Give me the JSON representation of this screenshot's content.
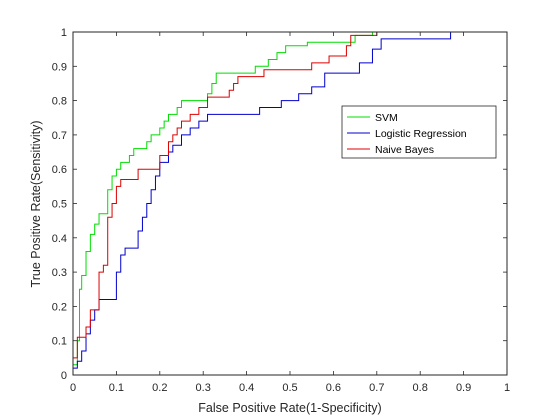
{
  "chart_data": {
    "type": "line",
    "title": "",
    "xlabel": "False Positive Rate(1-Specificity)",
    "ylabel": "True Positive Rate(Sensitivity)",
    "xlim": [
      0,
      1
    ],
    "ylim": [
      0,
      1
    ],
    "xticks": [
      "0",
      "0.1",
      "0.2",
      "0.3",
      "0.4",
      "0.5",
      "0.6",
      "0.7",
      "0.8",
      "0.9",
      "1"
    ],
    "yticks": [
      "0",
      "0.1",
      "0.2",
      "0.3",
      "0.4",
      "0.5",
      "0.6",
      "0.7",
      "0.8",
      "0.9",
      "1"
    ],
    "grid": false,
    "legend_position": "right",
    "series": [
      {
        "name": "SVM",
        "color": "#00dd00",
        "points": [
          [
            0,
            0
          ],
          [
            0,
            0.03
          ],
          [
            0.01,
            0.03
          ],
          [
            0.01,
            0.1
          ],
          [
            0.015,
            0.1
          ],
          [
            0.015,
            0.25
          ],
          [
            0.02,
            0.25
          ],
          [
            0.02,
            0.29
          ],
          [
            0.03,
            0.29
          ],
          [
            0.03,
            0.36
          ],
          [
            0.04,
            0.36
          ],
          [
            0.04,
            0.41
          ],
          [
            0.05,
            0.41
          ],
          [
            0.05,
            0.44
          ],
          [
            0.06,
            0.44
          ],
          [
            0.06,
            0.47
          ],
          [
            0.08,
            0.47
          ],
          [
            0.08,
            0.54
          ],
          [
            0.09,
            0.54
          ],
          [
            0.09,
            0.58
          ],
          [
            0.1,
            0.58
          ],
          [
            0.1,
            0.6
          ],
          [
            0.11,
            0.6
          ],
          [
            0.11,
            0.62
          ],
          [
            0.13,
            0.62
          ],
          [
            0.13,
            0.64
          ],
          [
            0.14,
            0.64
          ],
          [
            0.14,
            0.66
          ],
          [
            0.17,
            0.66
          ],
          [
            0.17,
            0.68
          ],
          [
            0.18,
            0.68
          ],
          [
            0.18,
            0.7
          ],
          [
            0.2,
            0.7
          ],
          [
            0.2,
            0.72
          ],
          [
            0.21,
            0.72
          ],
          [
            0.21,
            0.74
          ],
          [
            0.22,
            0.74
          ],
          [
            0.22,
            0.76
          ],
          [
            0.24,
            0.76
          ],
          [
            0.24,
            0.78
          ],
          [
            0.25,
            0.78
          ],
          [
            0.25,
            0.8
          ],
          [
            0.31,
            0.8
          ],
          [
            0.31,
            0.82
          ],
          [
            0.32,
            0.82
          ],
          [
            0.32,
            0.85
          ],
          [
            0.33,
            0.85
          ],
          [
            0.33,
            0.88
          ],
          [
            0.42,
            0.88
          ],
          [
            0.42,
            0.9
          ],
          [
            0.45,
            0.9
          ],
          [
            0.45,
            0.92
          ],
          [
            0.47,
            0.92
          ],
          [
            0.47,
            0.94
          ],
          [
            0.49,
            0.94
          ],
          [
            0.49,
            0.96
          ],
          [
            0.54,
            0.96
          ],
          [
            0.54,
            0.97
          ],
          [
            0.65,
            0.97
          ],
          [
            0.65,
            0.99
          ],
          [
            0.69,
            0.99
          ],
          [
            0.69,
            1.0
          ],
          [
            1.0,
            1.0
          ]
        ]
      },
      {
        "name": "Logistic Regression",
        "color": "#0000cc",
        "points": [
          [
            0,
            0
          ],
          [
            0,
            0.02
          ],
          [
            0.01,
            0.02
          ],
          [
            0.01,
            0.04
          ],
          [
            0.02,
            0.04
          ],
          [
            0.02,
            0.07
          ],
          [
            0.03,
            0.07
          ],
          [
            0.03,
            0.12
          ],
          [
            0.04,
            0.12
          ],
          [
            0.04,
            0.16
          ],
          [
            0.05,
            0.16
          ],
          [
            0.05,
            0.19
          ],
          [
            0.06,
            0.19
          ],
          [
            0.06,
            0.22
          ],
          [
            0.1,
            0.22
          ],
          [
            0.1,
            0.3
          ],
          [
            0.11,
            0.3
          ],
          [
            0.11,
            0.35
          ],
          [
            0.12,
            0.35
          ],
          [
            0.12,
            0.37
          ],
          [
            0.15,
            0.37
          ],
          [
            0.15,
            0.42
          ],
          [
            0.16,
            0.42
          ],
          [
            0.16,
            0.46
          ],
          [
            0.17,
            0.46
          ],
          [
            0.17,
            0.5
          ],
          [
            0.18,
            0.5
          ],
          [
            0.18,
            0.54
          ],
          [
            0.19,
            0.54
          ],
          [
            0.19,
            0.58
          ],
          [
            0.2,
            0.58
          ],
          [
            0.2,
            0.62
          ],
          [
            0.22,
            0.62
          ],
          [
            0.22,
            0.65
          ],
          [
            0.23,
            0.65
          ],
          [
            0.23,
            0.67
          ],
          [
            0.25,
            0.67
          ],
          [
            0.25,
            0.7
          ],
          [
            0.27,
            0.7
          ],
          [
            0.27,
            0.72
          ],
          [
            0.29,
            0.72
          ],
          [
            0.29,
            0.74
          ],
          [
            0.31,
            0.74
          ],
          [
            0.31,
            0.76
          ],
          [
            0.43,
            0.76
          ],
          [
            0.43,
            0.78
          ],
          [
            0.48,
            0.78
          ],
          [
            0.48,
            0.8
          ],
          [
            0.52,
            0.8
          ],
          [
            0.52,
            0.82
          ],
          [
            0.55,
            0.82
          ],
          [
            0.55,
            0.84
          ],
          [
            0.58,
            0.84
          ],
          [
            0.58,
            0.88
          ],
          [
            0.66,
            0.88
          ],
          [
            0.66,
            0.91
          ],
          [
            0.69,
            0.91
          ],
          [
            0.69,
            0.95
          ],
          [
            0.71,
            0.95
          ],
          [
            0.71,
            0.98
          ],
          [
            0.87,
            0.98
          ],
          [
            0.87,
            1.0
          ],
          [
            1.0,
            1.0
          ]
        ]
      },
      {
        "name": "Naive Bayes",
        "color": "#dd0000",
        "points": [
          [
            0,
            0
          ],
          [
            0,
            0.05
          ],
          [
            0.01,
            0.05
          ],
          [
            0.01,
            0.11
          ],
          [
            0.03,
            0.11
          ],
          [
            0.03,
            0.14
          ],
          [
            0.04,
            0.14
          ],
          [
            0.04,
            0.19
          ],
          [
            0.06,
            0.19
          ],
          [
            0.06,
            0.3
          ],
          [
            0.07,
            0.3
          ],
          [
            0.07,
            0.32
          ],
          [
            0.08,
            0.32
          ],
          [
            0.08,
            0.46
          ],
          [
            0.09,
            0.46
          ],
          [
            0.09,
            0.5
          ],
          [
            0.1,
            0.5
          ],
          [
            0.1,
            0.55
          ],
          [
            0.11,
            0.55
          ],
          [
            0.11,
            0.57
          ],
          [
            0.15,
            0.57
          ],
          [
            0.15,
            0.6
          ],
          [
            0.2,
            0.6
          ],
          [
            0.2,
            0.64
          ],
          [
            0.22,
            0.64
          ],
          [
            0.22,
            0.68
          ],
          [
            0.23,
            0.68
          ],
          [
            0.23,
            0.7
          ],
          [
            0.24,
            0.7
          ],
          [
            0.24,
            0.72
          ],
          [
            0.25,
            0.72
          ],
          [
            0.25,
            0.74
          ],
          [
            0.27,
            0.74
          ],
          [
            0.27,
            0.76
          ],
          [
            0.29,
            0.76
          ],
          [
            0.29,
            0.78
          ],
          [
            0.31,
            0.78
          ],
          [
            0.31,
            0.81
          ],
          [
            0.36,
            0.81
          ],
          [
            0.36,
            0.83
          ],
          [
            0.37,
            0.83
          ],
          [
            0.37,
            0.85
          ],
          [
            0.38,
            0.85
          ],
          [
            0.38,
            0.87
          ],
          [
            0.44,
            0.87
          ],
          [
            0.44,
            0.89
          ],
          [
            0.55,
            0.89
          ],
          [
            0.55,
            0.91
          ],
          [
            0.59,
            0.91
          ],
          [
            0.59,
            0.93
          ],
          [
            0.63,
            0.93
          ],
          [
            0.63,
            0.96
          ],
          [
            0.64,
            0.96
          ],
          [
            0.64,
            0.99
          ],
          [
            0.7,
            0.99
          ],
          [
            0.7,
            1.0
          ],
          [
            1.0,
            1.0
          ]
        ]
      }
    ]
  }
}
